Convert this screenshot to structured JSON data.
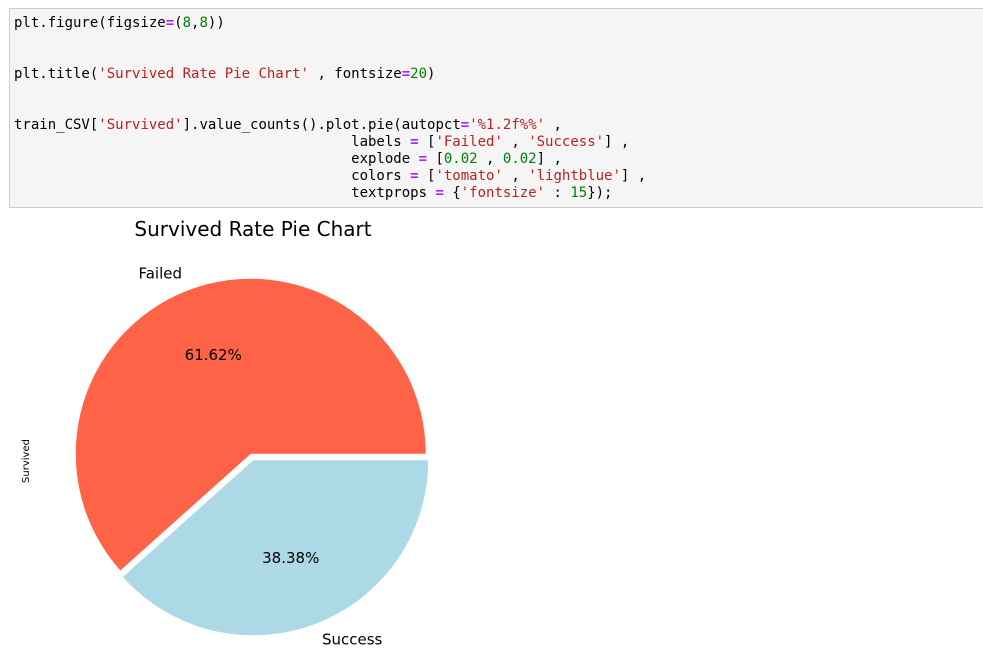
{
  "code_cell": {
    "lines": [
      [
        {
          "t": "plt.figure(figsize",
          "c": ""
        },
        {
          "t": "=",
          "c": "op"
        },
        {
          "t": "(",
          "c": ""
        },
        {
          "t": "8",
          "c": "num"
        },
        {
          "t": ",",
          "c": ""
        },
        {
          "t": "8",
          "c": "num"
        },
        {
          "t": "))",
          "c": ""
        }
      ],
      [],
      [],
      [
        {
          "t": "plt.title(",
          "c": ""
        },
        {
          "t": "'Survived Rate Pie Chart'",
          "c": "str"
        },
        {
          "t": " , fontsize",
          "c": ""
        },
        {
          "t": "=",
          "c": "op"
        },
        {
          "t": "20",
          "c": "num"
        },
        {
          "t": ")",
          "c": ""
        }
      ],
      [],
      [],
      [
        {
          "t": "train_CSV[",
          "c": ""
        },
        {
          "t": "'Survived'",
          "c": "str"
        },
        {
          "t": "].value_counts().plot.pie(autopct",
          "c": ""
        },
        {
          "t": "=",
          "c": "op"
        },
        {
          "t": "'%1.2f%%'",
          "c": "str"
        },
        {
          "t": " ,",
          "c": ""
        }
      ],
      [
        {
          "t": "                                        labels ",
          "c": ""
        },
        {
          "t": "=",
          "c": "op"
        },
        {
          "t": " [",
          "c": ""
        },
        {
          "t": "'Failed'",
          "c": "str"
        },
        {
          "t": " , ",
          "c": ""
        },
        {
          "t": "'Success'",
          "c": "str"
        },
        {
          "t": "] ,",
          "c": ""
        }
      ],
      [
        {
          "t": "                                        explode ",
          "c": ""
        },
        {
          "t": "=",
          "c": "op"
        },
        {
          "t": " [",
          "c": ""
        },
        {
          "t": "0.02",
          "c": "num"
        },
        {
          "t": " , ",
          "c": ""
        },
        {
          "t": "0.02",
          "c": "num"
        },
        {
          "t": "] ,",
          "c": ""
        }
      ],
      [
        {
          "t": "                                        colors ",
          "c": ""
        },
        {
          "t": "=",
          "c": "op"
        },
        {
          "t": " [",
          "c": ""
        },
        {
          "t": "'tomato'",
          "c": "str"
        },
        {
          "t": " , ",
          "c": ""
        },
        {
          "t": "'lightblue'",
          "c": "str"
        },
        {
          "t": "] ,",
          "c": ""
        }
      ],
      [
        {
          "t": "                                        textprops ",
          "c": ""
        },
        {
          "t": "=",
          "c": "op"
        },
        {
          "t": " {",
          "c": ""
        },
        {
          "t": "'fontsize'",
          "c": "str"
        },
        {
          "t": " : ",
          "c": ""
        },
        {
          "t": "15",
          "c": "num"
        },
        {
          "t": "});",
          "c": ""
        }
      ]
    ]
  },
  "chart_data": {
    "type": "pie",
    "title": "Survived Rate Pie Chart",
    "ylabel": "Survived",
    "categories": [
      "Failed",
      "Success"
    ],
    "values": [
      61.62,
      38.38
    ],
    "value_labels": [
      "61.62%",
      "38.38%"
    ],
    "colors": [
      "#ff6347",
      "#add8e6"
    ],
    "explode": [
      0.02,
      0.02
    ]
  }
}
